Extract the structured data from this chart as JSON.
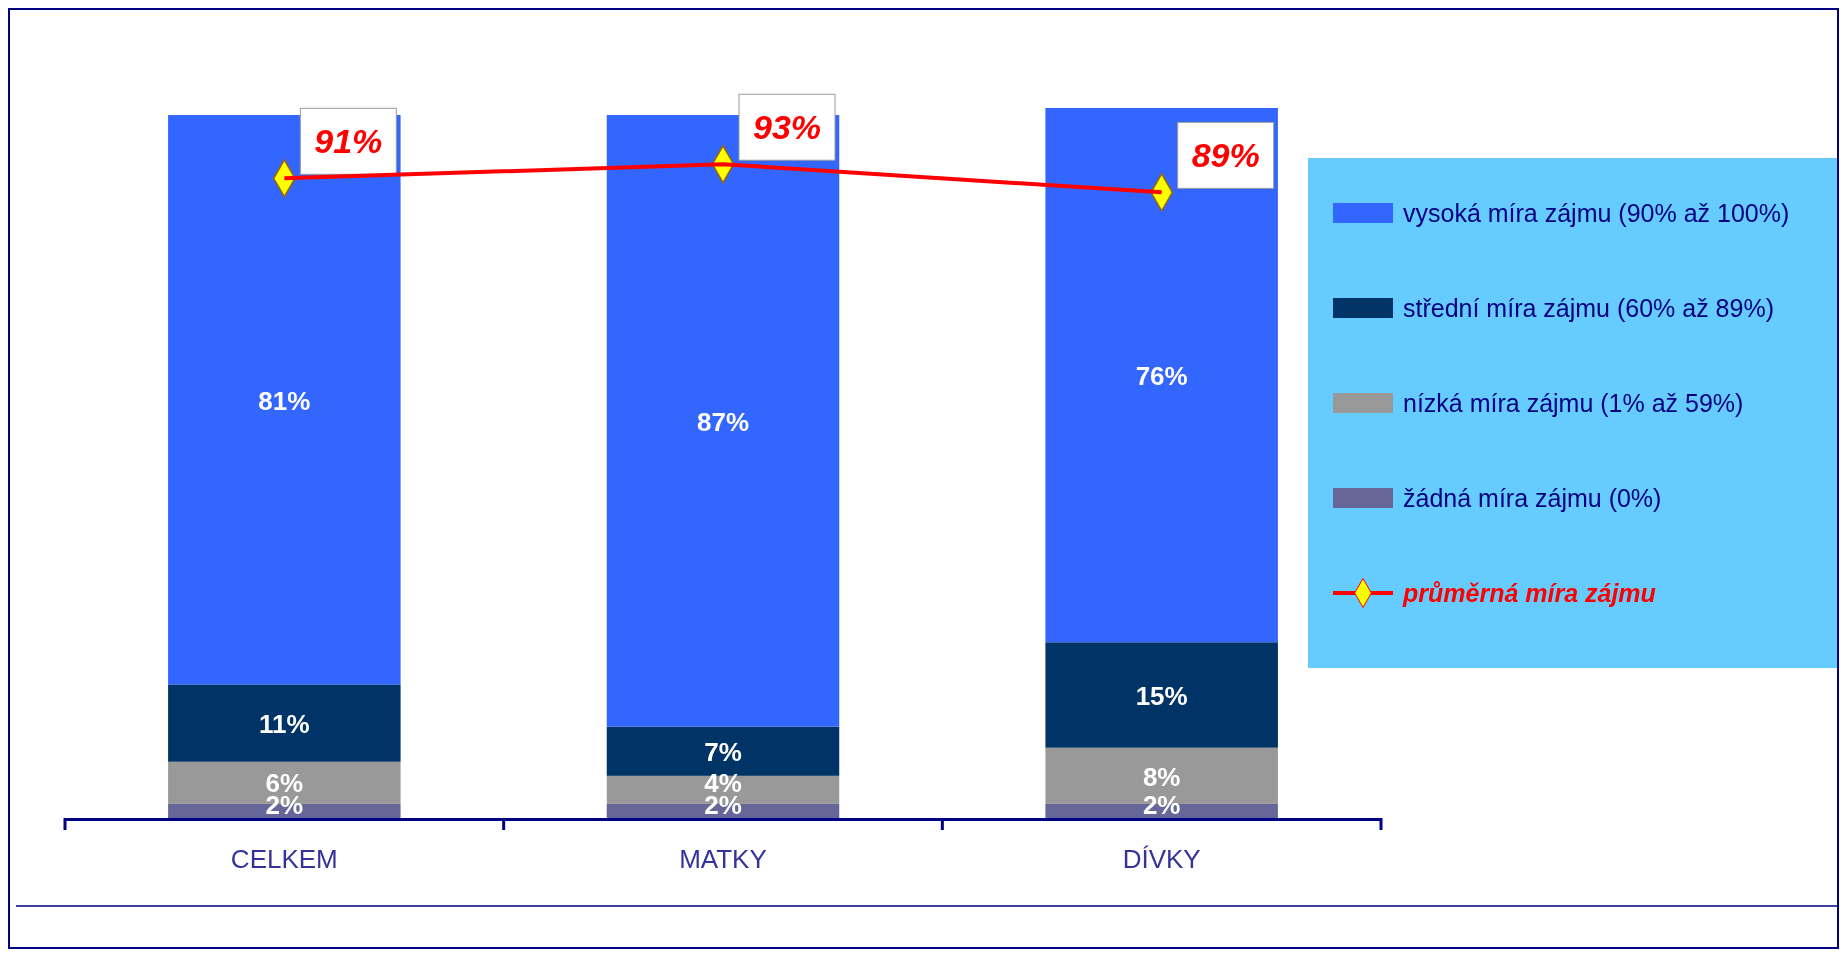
{
  "chart_data": {
    "type": "bar",
    "stacked": true,
    "categories": [
      "CELKEM",
      "MATKY",
      "DÍVKY"
    ],
    "series": [
      {
        "name": "žádná míra zájmu (0%)",
        "color": "#666699",
        "values": [
          2,
          2,
          2
        ],
        "value_labels": [
          "2%",
          "2%",
          "2%"
        ]
      },
      {
        "name": "nízká míra zájmu (1% až 59%)",
        "color": "#999999",
        "values": [
          6,
          4,
          8
        ],
        "value_labels": [
          "6%",
          "4%",
          "8%"
        ]
      },
      {
        "name": "střední míra zájmu (60% až 89%)",
        "color": "#003366",
        "values": [
          11,
          7,
          15
        ],
        "value_labels": [
          "11%",
          "7%",
          "15%"
        ]
      },
      {
        "name": "vysoká míra zájmu (90% až 100%)",
        "color": "#3366ff",
        "values": [
          81,
          87,
          76
        ],
        "value_labels": [
          "81%",
          "87%",
          "76%"
        ]
      },
      {
        "name": "průměrná míra zájmu",
        "type": "line",
        "color": "#ff0000",
        "marker": "diamond",
        "values": [
          91,
          93,
          89
        ],
        "value_labels": [
          "91%",
          "93%",
          "89%"
        ]
      }
    ],
    "legend": "right",
    "grid": false
  }
}
